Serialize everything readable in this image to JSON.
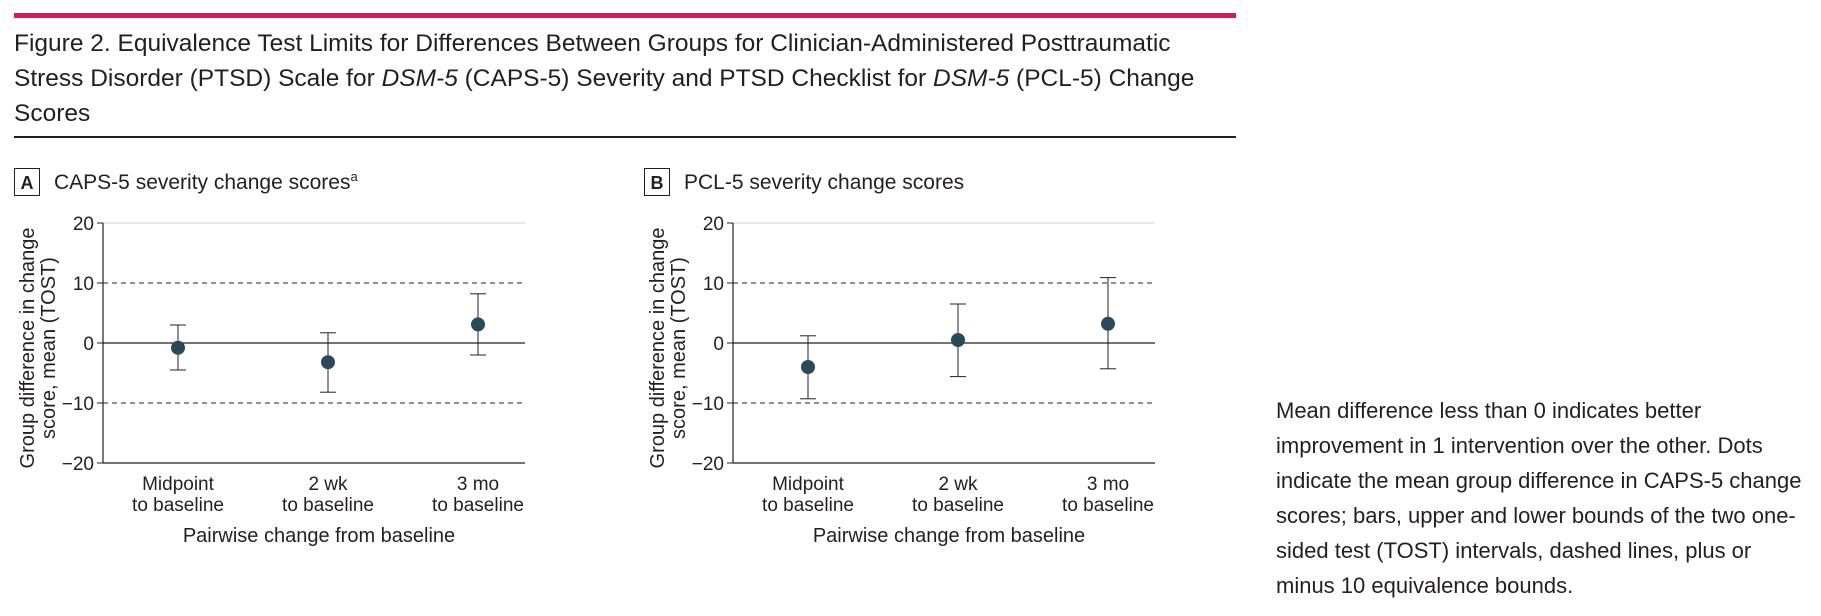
{
  "figure": {
    "title_parts": [
      {
        "text": "Figure 2. Equivalence Test Limits for Differences Between Groups for Clinician-Administered Posttraumatic Stress Disorder (PTSD) Scale for ",
        "italic": false
      },
      {
        "text": "DSM-5",
        "italic": true
      },
      {
        "text": " (CAPS-5) Severity and PTSD Checklist for ",
        "italic": false
      },
      {
        "text": "DSM-5",
        "italic": true
      },
      {
        "text": " (PCL-5) Change Scores",
        "italic": false
      }
    ],
    "accent_color": "#e0115f",
    "caption": "Mean difference less than 0 indicates better improvement in 1 intervention over the other. Dots indicate the mean group difference in CAPS-5 change scores; bars, upper and lower bounds of the two one-sided test (TOST) intervals, dashed lines, plus or minus 10 equivalence bounds."
  },
  "panels": [
    {
      "letter": "A",
      "title": "CAPS-5 severity change scores",
      "superscript": "a"
    },
    {
      "letter": "B",
      "title": "PCL-5 severity change scores",
      "superscript": ""
    }
  ],
  "chart_data": [
    {
      "type": "scatter",
      "title": "CAPS-5 severity change scores",
      "xlabel": "Pairwise change from baseline",
      "ylabel_lines": [
        "Group difference in change",
        "score, mean (TOST)"
      ],
      "categories": [
        [
          "Midpoint",
          "to baseline"
        ],
        [
          "2 wk",
          "to baseline"
        ],
        [
          "3 mo",
          "to baseline"
        ]
      ],
      "ylim": [
        -20,
        20
      ],
      "yticks": [
        20,
        10,
        0,
        -10,
        -20
      ],
      "ytick_labels": [
        "20",
        "10",
        "0",
        "−10",
        "−20"
      ],
      "equivalence_bounds": [
        10,
        -10
      ],
      "grid": true,
      "point_color": "#2b4a58",
      "series": [
        {
          "mean": [
            -0.8,
            -3.2,
            3.1
          ],
          "lower": [
            -4.5,
            -8.2,
            -2.0
          ],
          "upper": [
            3.0,
            1.7,
            8.2
          ]
        }
      ]
    },
    {
      "type": "scatter",
      "title": "PCL-5 severity change scores",
      "xlabel": "Pairwise change from baseline",
      "ylabel_lines": [
        "Group difference in change",
        "score, mean (TOST)"
      ],
      "categories": [
        [
          "Midpoint",
          "to baseline"
        ],
        [
          "2 wk",
          "to baseline"
        ],
        [
          "3 mo",
          "to baseline"
        ]
      ],
      "ylim": [
        -20,
        20
      ],
      "yticks": [
        20,
        10,
        0,
        -10,
        -20
      ],
      "ytick_labels": [
        "20",
        "10",
        "0",
        "−10",
        "−20"
      ],
      "equivalence_bounds": [
        10,
        -10
      ],
      "grid": true,
      "point_color": "#2b4a58",
      "series": [
        {
          "mean": [
            -4.0,
            0.5,
            3.2
          ],
          "lower": [
            -9.3,
            -5.6,
            -4.3
          ],
          "upper": [
            1.2,
            6.5,
            10.9
          ]
        }
      ]
    }
  ]
}
